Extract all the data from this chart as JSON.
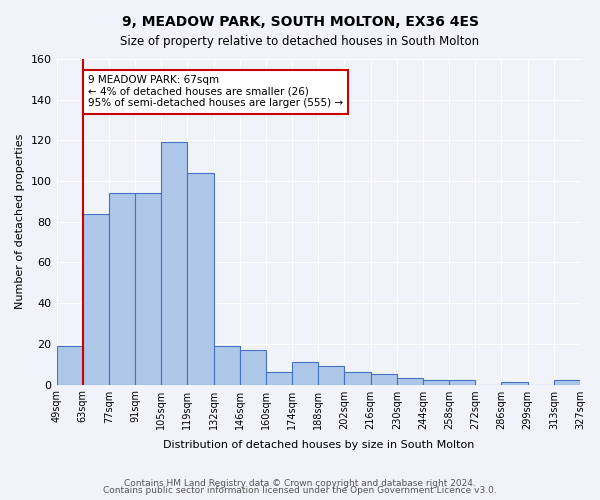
{
  "title": "9, MEADOW PARK, SOUTH MOLTON, EX36 4ES",
  "subtitle": "Size of property relative to detached houses in South Molton",
  "xlabel": "Distribution of detached houses by size in South Molton",
  "ylabel": "Number of detached properties",
  "bin_labels": [
    "49sqm",
    "63sqm",
    "77sqm",
    "91sqm",
    "105sqm",
    "119sqm",
    "132sqm",
    "146sqm",
    "160sqm",
    "174sqm",
    "188sqm",
    "202sqm",
    "216sqm",
    "230sqm",
    "244sqm",
    "258sqm",
    "272sqm",
    "286sqm",
    "299sqm",
    "313sqm",
    "327sqm"
  ],
  "bar_values": [
    19,
    84,
    94,
    94,
    119,
    104,
    19,
    17,
    6,
    11,
    9,
    6,
    5,
    3,
    2,
    2,
    0,
    1,
    0,
    2
  ],
  "bar_color": "#aec6e8",
  "bar_edge_color": "#4472c4",
  "ylim": [
    0,
    160
  ],
  "yticks": [
    0,
    20,
    40,
    60,
    80,
    100,
    120,
    140,
    160
  ],
  "red_line_x": 1,
  "red_line_color": "#cc0000",
  "annotation_text": "9 MEADOW PARK: 67sqm\n← 4% of detached houses are smaller (26)\n95% of semi-detached houses are larger (555) →",
  "annotation_box_color": "#ffffff",
  "annotation_box_edge": "#cc0000",
  "footer_line1": "Contains HM Land Registry data © Crown copyright and database right 2024.",
  "footer_line2": "Contains public sector information licensed under the Open Government Licence v3.0.",
  "background_color": "#f0f4fa",
  "grid_color": "#ffffff"
}
